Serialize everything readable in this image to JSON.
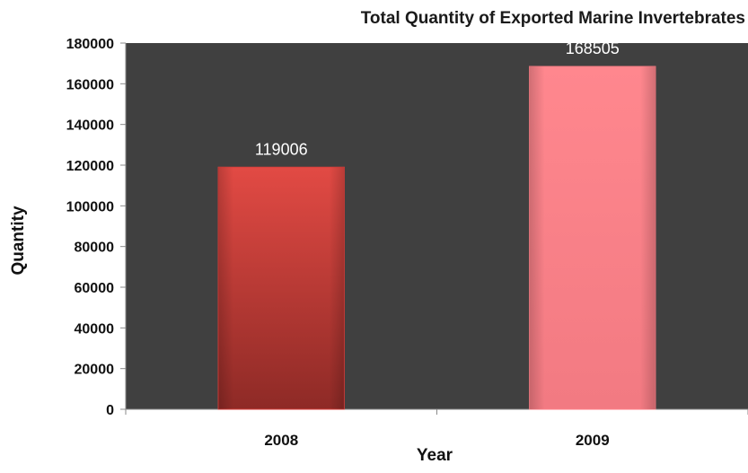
{
  "chart_data": {
    "type": "bar",
    "title": "Total Quantity of Exported Marine Invertebrates",
    "xlabel": "Year",
    "ylabel": "Quantity",
    "categories": [
      "2008",
      "2009"
    ],
    "values": [
      119006,
      168505
    ],
    "ylim": [
      0,
      180000
    ],
    "yticks": [
      0,
      20000,
      40000,
      60000,
      80000,
      100000,
      120000,
      140000,
      160000,
      180000
    ],
    "grid": false,
    "legend": "none",
    "bar_colors": [
      "#d8403c",
      "#ff8088"
    ],
    "plot_background": "#404040"
  }
}
